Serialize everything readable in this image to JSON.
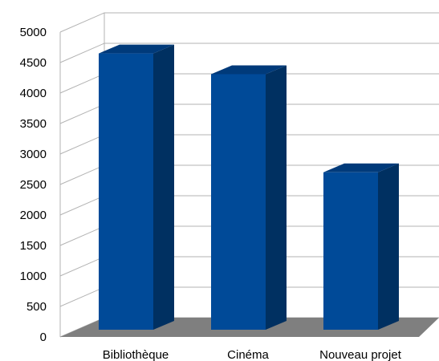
{
  "chart_data": {
    "type": "bar",
    "style": "3d",
    "categories": [
      "Bibliothèque",
      "Cinéma",
      "Nouveau projet"
    ],
    "values": [
      4650,
      4310,
      2700
    ],
    "title": "",
    "xlabel": "",
    "ylabel": "",
    "ylim": [
      0,
      5000
    ],
    "yticks": [
      0,
      500,
      1000,
      1500,
      2000,
      2500,
      3000,
      3500,
      4000,
      4500,
      5000
    ],
    "grid": true,
    "legend": "none",
    "colors": {
      "bar_front": "#004a98",
      "bar_side": "#003061",
      "bar_top": "#003a7a",
      "floor": "#7f7f7f",
      "grid": "#b3b3b3"
    }
  }
}
